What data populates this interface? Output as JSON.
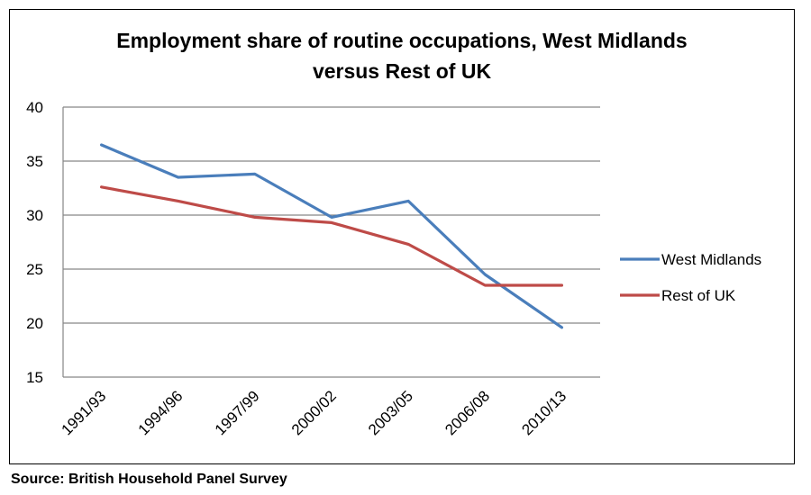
{
  "chart_data": {
    "type": "line",
    "title_lines": [
      "Employment share of routine occupations, West Midlands",
      "versus Rest of UK"
    ],
    "categories": [
      "1991/93",
      "1994/96",
      "1997/99",
      "2000/02",
      "2003/05",
      "2006/08",
      "2010/13"
    ],
    "ylim": [
      15,
      40
    ],
    "yticks": [
      15,
      20,
      25,
      30,
      35,
      40
    ],
    "grid": true,
    "legend_position": "right",
    "series": [
      {
        "name": "West Midlands",
        "color": "#4a7ebb",
        "values": [
          36.5,
          33.5,
          33.8,
          29.8,
          31.3,
          24.5,
          19.6
        ]
      },
      {
        "name": "Rest of UK",
        "color": "#be4b48",
        "values": [
          32.6,
          31.3,
          29.8,
          29.3,
          27.3,
          23.5,
          23.5
        ]
      }
    ]
  },
  "source": "Source: British Household Panel Survey"
}
